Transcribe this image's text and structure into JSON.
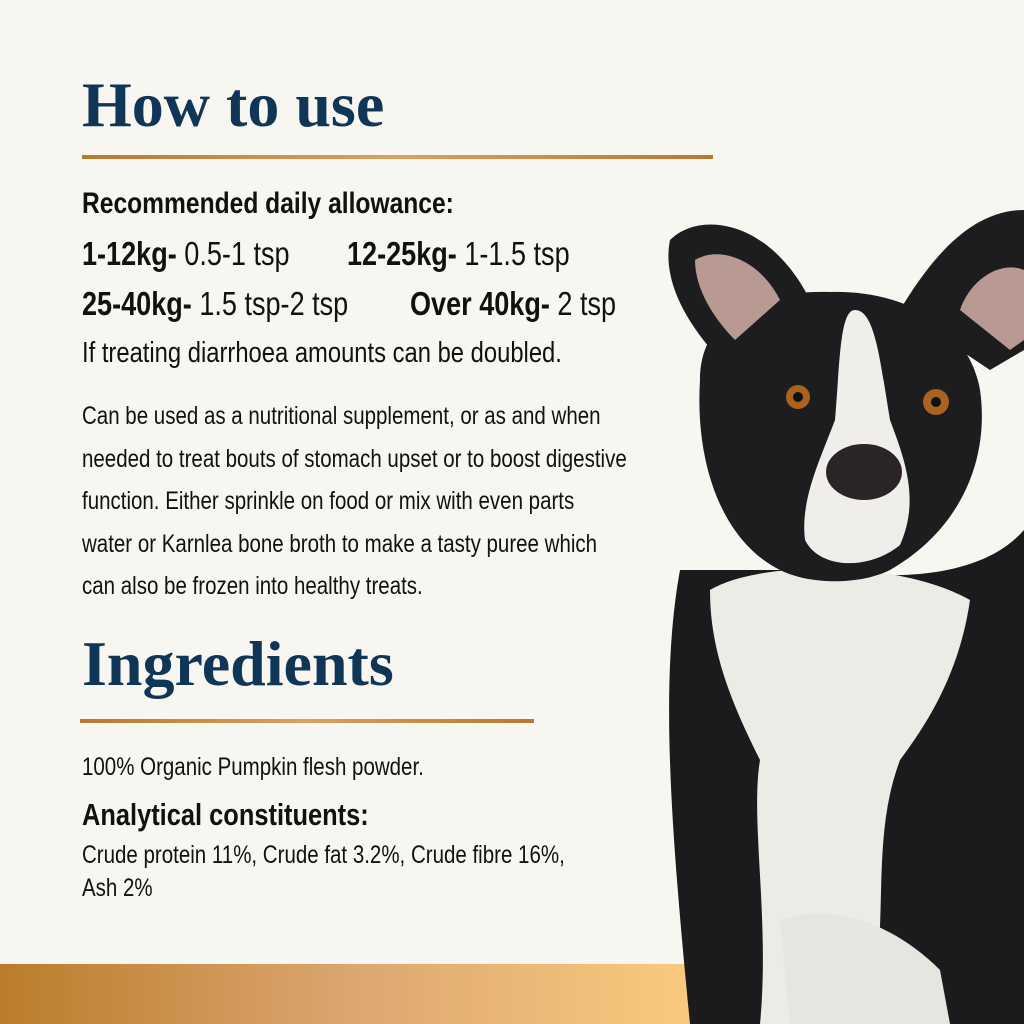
{
  "how_to_use": {
    "title": "How to use",
    "rda_heading": "Recommended daily allowance:",
    "doses": [
      {
        "weight": "1-12kg-",
        "amount": "0.5-1 tsp"
      },
      {
        "weight": "12-25kg-",
        "amount": "1-1.5 tsp"
      },
      {
        "weight": "25-40kg-",
        "amount": "1.5 tsp-2 tsp"
      },
      {
        "weight": "Over 40kg-",
        "amount": "2 tsp"
      }
    ],
    "note": "If treating diarrhoea amounts can be doubled.",
    "paragraph": [
      "Can be used as a nutritional supplement, or as and when",
      "needed to treat bouts of stomach upset or to boost digestive",
      "function. Either sprinkle on food or mix with even parts",
      "water or Karnlea bone broth to make a tasty puree which",
      "can also be frozen into healthy treats."
    ]
  },
  "ingredients": {
    "title": "Ingredients",
    "text": "100% Organic Pumpkin flesh powder.",
    "analytical_heading": "Analytical constituents:",
    "analytical_lines": [
      "Crude protein 11%, Crude fat 3.2%, Crude fibre 16%,",
      "Ash 2%"
    ]
  },
  "colors": {
    "title": "#0f3557",
    "accent": "#c08236",
    "background": "#f8f6f0"
  },
  "image": "border-collie-dog-photo"
}
